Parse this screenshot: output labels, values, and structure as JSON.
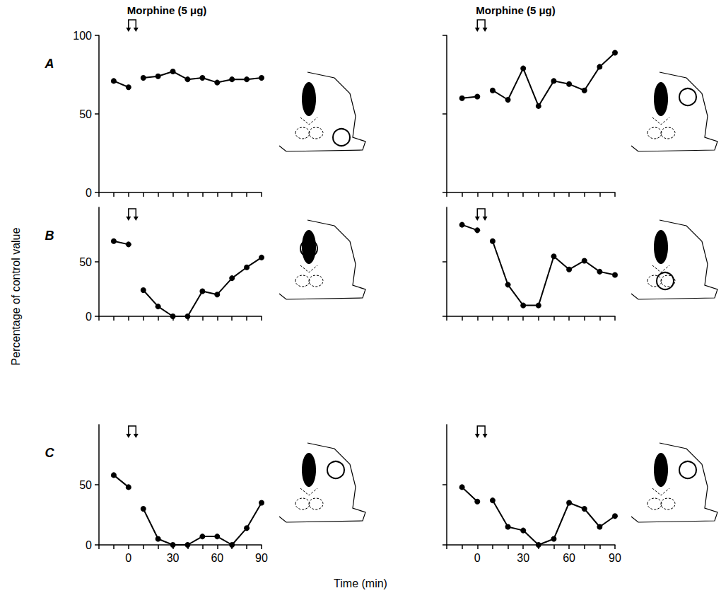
{
  "y_label": "Percentage of control value",
  "x_label": "Time (min)",
  "chart_data": [
    {
      "type": "line",
      "panel": "A",
      "color": "#000000",
      "marker": "circle",
      "annotation": {
        "text": "Morphine (5 μg)",
        "x": [
          0,
          5
        ]
      },
      "x": [
        -10,
        0,
        5,
        10,
        20,
        30,
        40,
        50,
        60,
        70,
        80,
        90
      ],
      "values": [
        71,
        67,
        null,
        73,
        74,
        77,
        72,
        73,
        70,
        72,
        72,
        73
      ],
      "xlim": [
        -20,
        90
      ],
      "xticks": [
        0,
        30,
        60,
        90
      ],
      "ylim": [
        0,
        100
      ],
      "yticks": [
        0,
        50,
        100
      ],
      "tick_labels": "y"
    },
    {
      "type": "line",
      "color": "#000000",
      "marker": "circle",
      "annotation": {
        "text": "Morphine (5 μg)",
        "x": [
          0,
          5
        ]
      },
      "x": [
        -10,
        0,
        5,
        10,
        20,
        30,
        40,
        50,
        60,
        70,
        80,
        90
      ],
      "values": [
        60,
        61,
        null,
        65,
        59,
        79,
        55,
        71,
        69,
        65,
        80,
        89
      ],
      "xlim": [
        -20,
        90
      ],
      "xticks": [
        0,
        30,
        60,
        90
      ],
      "ylim": [
        0,
        100
      ],
      "yticks": [
        0,
        50,
        100
      ],
      "tick_labels": false
    },
    {
      "type": "line",
      "panel": "B",
      "color": "#000000",
      "marker": "circle",
      "annotation": {
        "x": [
          0,
          5
        ]
      },
      "x": [
        -10,
        0,
        5,
        10,
        20,
        30,
        40,
        50,
        60,
        70,
        80,
        90
      ],
      "values": [
        69,
        66,
        null,
        24,
        9,
        0,
        0,
        23,
        20,
        35,
        45,
        54
      ],
      "xlim": [
        -20,
        90
      ],
      "xticks": [
        0,
        30,
        60,
        90
      ],
      "ylim": [
        0,
        100
      ],
      "yticks": [
        0,
        50
      ],
      "tick_labels": "y"
    },
    {
      "type": "line",
      "color": "#000000",
      "marker": "circle",
      "annotation": {
        "x": [
          0,
          5
        ]
      },
      "x": [
        -10,
        0,
        5,
        10,
        20,
        30,
        40,
        50,
        60,
        70,
        80,
        90
      ],
      "values": [
        84,
        79,
        null,
        69,
        29,
        10,
        10,
        55,
        43,
        51,
        41,
        38
      ],
      "xlim": [
        -20,
        90
      ],
      "xticks": [
        0,
        30,
        60,
        90
      ],
      "ylim": [
        0,
        100
      ],
      "yticks": [
        0,
        50
      ],
      "tick_labels": false
    },
    {
      "type": "line",
      "panel": "C",
      "color": "#000000",
      "marker": "circle",
      "annotation": {
        "x": [
          0,
          5
        ]
      },
      "x": [
        -10,
        0,
        5,
        10,
        20,
        30,
        40,
        50,
        60,
        70,
        80,
        90
      ],
      "values": [
        58,
        48,
        null,
        30,
        5,
        0,
        0,
        7,
        7,
        0,
        14,
        35
      ],
      "xlim": [
        -20,
        90
      ],
      "xticks": [
        0,
        30,
        60,
        90
      ],
      "ylim": [
        0,
        100
      ],
      "yticks": [
        0,
        50
      ],
      "tick_labels": true
    },
    {
      "type": "line",
      "color": "#000000",
      "marker": "circle",
      "annotation": {
        "x": [
          0,
          5
        ]
      },
      "x": [
        -10,
        0,
        5,
        10,
        20,
        30,
        40,
        50,
        60,
        70,
        80,
        90
      ],
      "values": [
        48,
        36,
        null,
        37,
        15,
        12,
        0,
        5,
        35,
        30,
        15,
        24
      ],
      "xlim": [
        -20,
        90
      ],
      "xticks": [
        0,
        30,
        60,
        90
      ],
      "ylim": [
        0,
        100
      ],
      "yticks": [
        0,
        50
      ],
      "tick_labels": "x"
    }
  ]
}
